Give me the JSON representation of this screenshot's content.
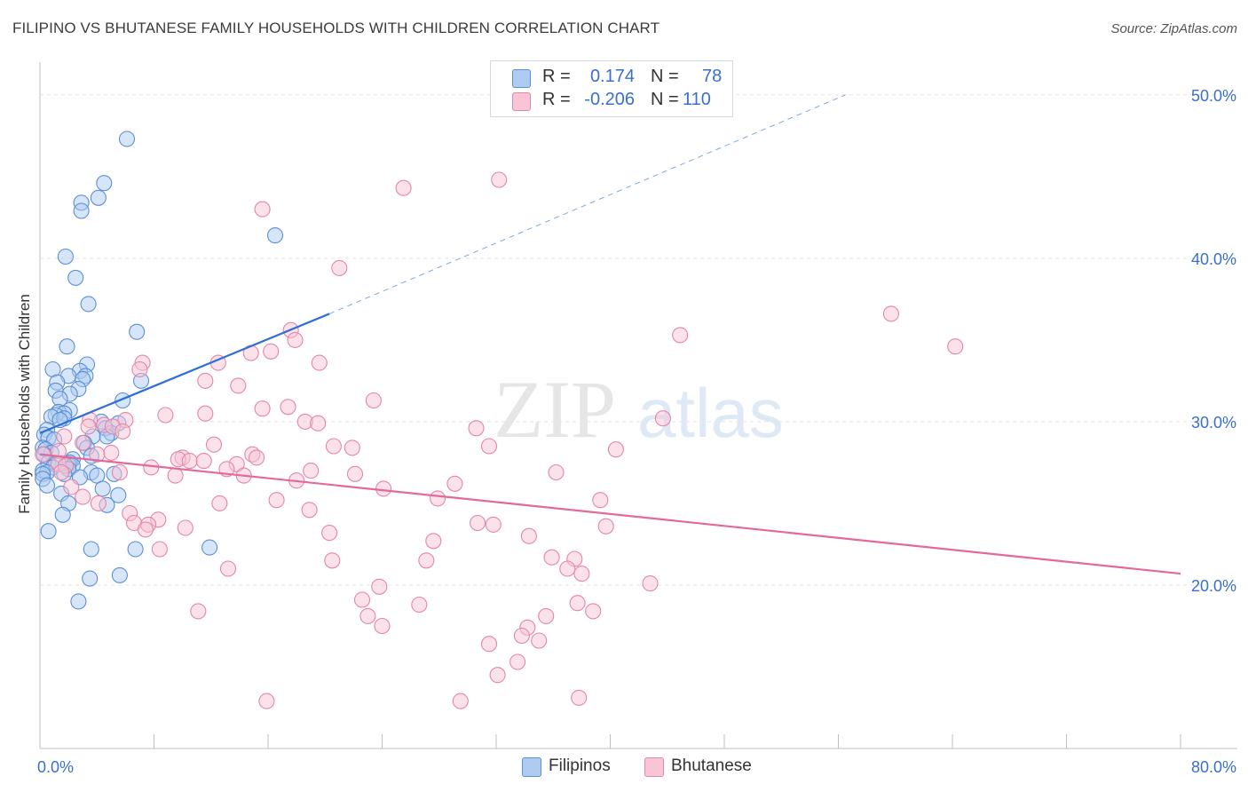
{
  "title": "FILIPINO VS BHUTANESE FAMILY HOUSEHOLDS WITH CHILDREN CORRELATION CHART",
  "source": "Source: ZipAtlas.com",
  "watermark": {
    "part1": "ZIP",
    "part2": "atlas"
  },
  "legend": {
    "rows": [
      {
        "r_label": "R =",
        "r_value": "0.174",
        "n_label": "N =",
        "n_value": "78",
        "color": "#aecbf2",
        "stroke": "#5b8fd6"
      },
      {
        "r_label": "R =",
        "r_value": "-0.206",
        "n_label": "N =",
        "n_value": "110",
        "color": "#f8c4d6",
        "stroke": "#e486a8"
      }
    ]
  },
  "chart_data": {
    "type": "scatter",
    "title": "FILIPINO VS BHUTANESE FAMILY HOUSEHOLDS WITH CHILDREN CORRELATION CHART",
    "xlabel": "",
    "ylabel": "Family Households with Children",
    "xlim": [
      0,
      80
    ],
    "ylim": [
      10,
      52
    ],
    "x_tick_labels": [
      "0.0%",
      "80.0%"
    ],
    "y_ticks": [
      20,
      30,
      40,
      50
    ],
    "y_tick_labels": [
      "20.0%",
      "30.0%",
      "40.0%",
      "50.0%"
    ],
    "grid": true,
    "legend_placement": "bottom-center",
    "series": [
      {
        "name": "Filipinos",
        "color": "#5b8fd6",
        "fill": "#aecbf2",
        "trend": {
          "x0": 0,
          "y0": 29.3,
          "x1": 20.3,
          "y1": 36.6,
          "dashed_to_x": 56.5,
          "dashed_to_y": 50.0
        },
        "points": [
          [
            6.1,
            47.3
          ],
          [
            4.5,
            44.6
          ],
          [
            4.1,
            43.7
          ],
          [
            2.9,
            43.4
          ],
          [
            2.9,
            42.9
          ],
          [
            16.5,
            41.4
          ],
          [
            1.8,
            40.1
          ],
          [
            2.5,
            38.8
          ],
          [
            3.4,
            37.2
          ],
          [
            6.8,
            35.5
          ],
          [
            1.9,
            34.6
          ],
          [
            3.3,
            33.5
          ],
          [
            0.9,
            33.2
          ],
          [
            2.8,
            33.1
          ],
          [
            3.2,
            32.8
          ],
          [
            2.0,
            32.8
          ],
          [
            3.0,
            32.6
          ],
          [
            7.1,
            32.5
          ],
          [
            1.2,
            32.4
          ],
          [
            2.7,
            32.0
          ],
          [
            1.1,
            31.9
          ],
          [
            2.1,
            31.7
          ],
          [
            1.4,
            31.4
          ],
          [
            5.8,
            31.3
          ],
          [
            2.1,
            30.7
          ],
          [
            1.3,
            30.6
          ],
          [
            1.7,
            30.5
          ],
          [
            1.1,
            30.4
          ],
          [
            0.8,
            30.3
          ],
          [
            1.7,
            30.2
          ],
          [
            1.4,
            30.1
          ],
          [
            4.3,
            30.0
          ],
          [
            5.5,
            29.9
          ],
          [
            4.6,
            29.6
          ],
          [
            0.5,
            29.5
          ],
          [
            5.0,
            29.3
          ],
          [
            0.3,
            29.2
          ],
          [
            4.7,
            29.1
          ],
          [
            3.7,
            29.1
          ],
          [
            0.6,
            29.0
          ],
          [
            1.0,
            28.9
          ],
          [
            3.1,
            28.7
          ],
          [
            0.2,
            28.4
          ],
          [
            3.3,
            28.4
          ],
          [
            0.4,
            28.3
          ],
          [
            0.8,
            28.1
          ],
          [
            0.3,
            28.0
          ],
          [
            3.6,
            27.9
          ],
          [
            2.3,
            27.7
          ],
          [
            2.1,
            27.5
          ],
          [
            0.6,
            27.5
          ],
          [
            1.1,
            27.4
          ],
          [
            2.0,
            27.4
          ],
          [
            2.3,
            27.3
          ],
          [
            0.9,
            27.2
          ],
          [
            2.0,
            27.1
          ],
          [
            0.2,
            27.0
          ],
          [
            0.5,
            26.9
          ],
          [
            3.6,
            26.9
          ],
          [
            0.2,
            26.8
          ],
          [
            1.7,
            26.8
          ],
          [
            5.2,
            26.8
          ],
          [
            4.0,
            26.7
          ],
          [
            2.8,
            26.6
          ],
          [
            0.2,
            26.5
          ],
          [
            0.5,
            26.1
          ],
          [
            4.4,
            25.9
          ],
          [
            1.5,
            25.6
          ],
          [
            5.5,
            25.5
          ],
          [
            2.0,
            25.0
          ],
          [
            4.7,
            24.9
          ],
          [
            1.6,
            24.3
          ],
          [
            0.6,
            23.3
          ],
          [
            3.6,
            22.2
          ],
          [
            6.7,
            22.2
          ],
          [
            11.9,
            22.3
          ],
          [
            3.5,
            20.4
          ],
          [
            5.6,
            20.6
          ],
          [
            2.7,
            19.0
          ]
        ]
      },
      {
        "name": "Bhutanese",
        "color": "#e486a8",
        "fill": "#f8c4d6",
        "trend": {
          "x0": 0,
          "y0": 28.0,
          "x1": 80,
          "y1": 20.7
        },
        "points": [
          [
            32.2,
            44.8
          ],
          [
            25.5,
            44.3
          ],
          [
            15.6,
            43.0
          ],
          [
            21.0,
            39.4
          ],
          [
            59.7,
            36.6
          ],
          [
            44.9,
            35.3
          ],
          [
            17.6,
            35.6
          ],
          [
            64.2,
            34.6
          ],
          [
            17.9,
            35.0
          ],
          [
            14.8,
            34.2
          ],
          [
            16.2,
            34.3
          ],
          [
            12.5,
            33.6
          ],
          [
            7.2,
            33.6
          ],
          [
            19.6,
            33.6
          ],
          [
            7.0,
            33.2
          ],
          [
            11.6,
            32.5
          ],
          [
            13.9,
            32.2
          ],
          [
            23.4,
            31.3
          ],
          [
            17.4,
            30.9
          ],
          [
            15.6,
            30.8
          ],
          [
            11.6,
            30.5
          ],
          [
            8.8,
            30.4
          ],
          [
            43.7,
            30.2
          ],
          [
            3.5,
            30.1
          ],
          [
            6.0,
            30.1
          ],
          [
            18.6,
            30.0
          ],
          [
            19.5,
            29.9
          ],
          [
            4.5,
            29.8
          ],
          [
            3.4,
            29.7
          ],
          [
            5.1,
            29.7
          ],
          [
            30.6,
            29.6
          ],
          [
            5.8,
            29.4
          ],
          [
            1.7,
            29.1
          ],
          [
            3.0,
            28.7
          ],
          [
            12.2,
            28.6
          ],
          [
            20.6,
            28.5
          ],
          [
            21.9,
            28.4
          ],
          [
            31.5,
            28.5
          ],
          [
            40.4,
            28.3
          ],
          [
            1.3,
            28.2
          ],
          [
            0.2,
            28.0
          ],
          [
            5.0,
            28.1
          ],
          [
            14.9,
            28.0
          ],
          [
            4.0,
            28.0
          ],
          [
            15.2,
            27.8
          ],
          [
            10.0,
            27.8
          ],
          [
            9.7,
            27.7
          ],
          [
            10.5,
            27.6
          ],
          [
            11.5,
            27.6
          ],
          [
            13.8,
            27.4
          ],
          [
            1.3,
            27.4
          ],
          [
            1.8,
            27.3
          ],
          [
            7.8,
            27.2
          ],
          [
            13.1,
            27.1
          ],
          [
            19.0,
            27.0
          ],
          [
            1.5,
            26.9
          ],
          [
            5.6,
            26.9
          ],
          [
            36.2,
            26.9
          ],
          [
            22.1,
            26.8
          ],
          [
            9.5,
            26.7
          ],
          [
            14.3,
            26.7
          ],
          [
            18.0,
            26.4
          ],
          [
            29.1,
            26.2
          ],
          [
            24.1,
            25.9
          ],
          [
            2.2,
            26.0
          ],
          [
            3.0,
            25.4
          ],
          [
            27.9,
            25.3
          ],
          [
            16.6,
            25.2
          ],
          [
            39.3,
            25.2
          ],
          [
            12.6,
            25.0
          ],
          [
            4.1,
            25.0
          ],
          [
            18.9,
            24.6
          ],
          [
            6.3,
            24.4
          ],
          [
            8.3,
            24.0
          ],
          [
            6.6,
            23.8
          ],
          [
            7.6,
            23.7
          ],
          [
            30.7,
            23.8
          ],
          [
            31.8,
            23.7
          ],
          [
            39.7,
            23.6
          ],
          [
            10.2,
            23.5
          ],
          [
            7.4,
            23.4
          ],
          [
            20.3,
            23.2
          ],
          [
            34.3,
            23.0
          ],
          [
            27.6,
            22.7
          ],
          [
            8.4,
            22.2
          ],
          [
            35.9,
            21.7
          ],
          [
            37.5,
            21.6
          ],
          [
            20.5,
            21.5
          ],
          [
            27.1,
            21.5
          ],
          [
            37.0,
            21.0
          ],
          [
            13.2,
            21.0
          ],
          [
            38.0,
            20.7
          ],
          [
            42.8,
            20.1
          ],
          [
            23.8,
            19.9
          ],
          [
            22.6,
            19.1
          ],
          [
            37.7,
            18.9
          ],
          [
            26.6,
            18.8
          ],
          [
            11.1,
            18.4
          ],
          [
            38.8,
            18.4
          ],
          [
            35.5,
            18.1
          ],
          [
            23.0,
            18.1
          ],
          [
            24.0,
            17.5
          ],
          [
            34.2,
            17.4
          ],
          [
            33.8,
            16.9
          ],
          [
            35.0,
            16.6
          ],
          [
            31.5,
            16.4
          ],
          [
            33.5,
            15.3
          ],
          [
            32.1,
            14.5
          ],
          [
            15.9,
            12.9
          ],
          [
            29.5,
            12.9
          ],
          [
            37.8,
            13.1
          ]
        ]
      }
    ]
  }
}
